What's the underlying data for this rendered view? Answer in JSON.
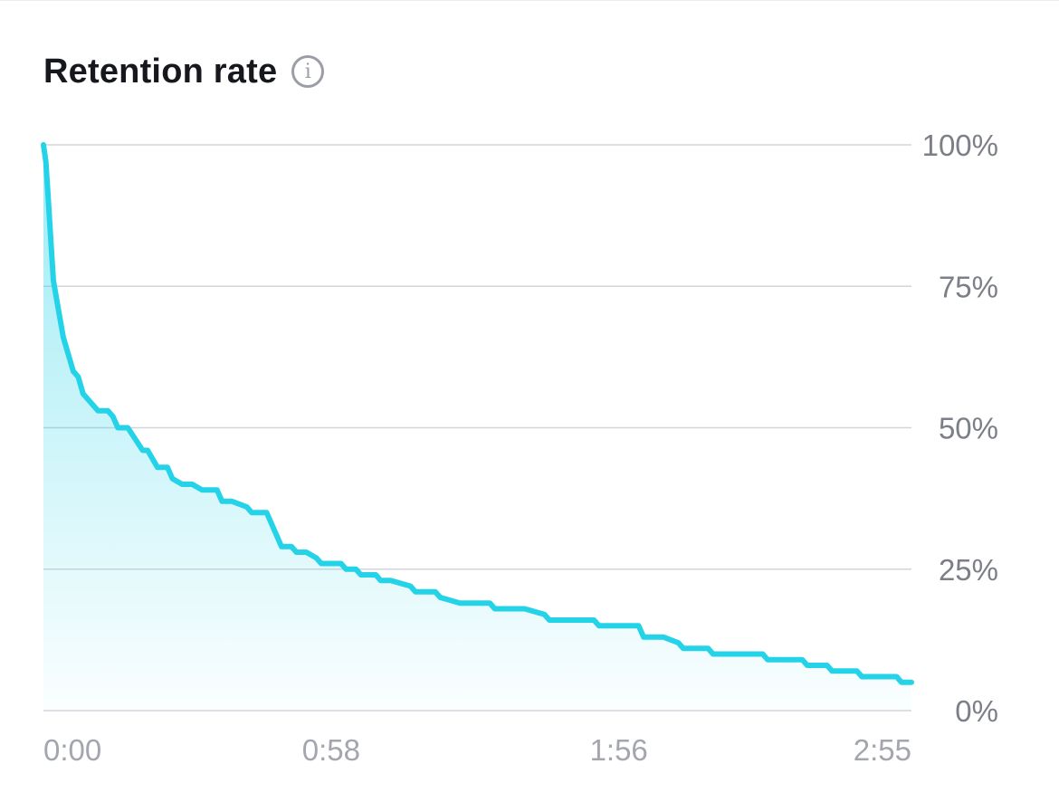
{
  "header": {
    "title": "Retention rate",
    "info_icon": "i"
  },
  "chart_data": {
    "type": "area",
    "title": "Retention rate",
    "xlabel": "",
    "ylabel": "",
    "x_tick_labels": [
      "0:00",
      "0:58",
      "1:56",
      "2:55"
    ],
    "x_tick_seconds": [
      0,
      58,
      116,
      175
    ],
    "xlim_seconds": [
      0,
      175
    ],
    "y_tick_labels": [
      "0%",
      "25%",
      "50%",
      "75%",
      "100%"
    ],
    "y_ticks": [
      0,
      25,
      50,
      75,
      100
    ],
    "ylim": [
      0,
      100
    ],
    "grid": true,
    "y_axis_position": "right",
    "line_color": "#25d3e8",
    "fill_color": "#25d3e8",
    "series": [
      {
        "x_seconds": [
          0,
          0.5,
          1,
          1.5,
          2,
          3,
          4,
          5,
          6,
          7,
          8,
          9,
          10,
          11,
          12,
          13,
          14,
          15,
          17,
          20,
          21,
          23,
          25,
          26,
          28,
          30,
          32,
          35,
          36,
          38,
          41,
          42,
          45,
          46,
          48,
          50,
          51,
          53,
          55,
          56,
          60,
          61,
          63,
          64,
          67,
          68,
          70,
          74,
          75,
          79,
          80,
          84,
          90,
          91,
          97,
          101,
          102,
          111,
          112,
          120,
          121,
          125,
          128,
          129,
          134,
          135,
          145,
          146,
          153,
          154,
          158,
          159,
          164,
          165,
          172,
          173,
          175
        ],
        "y_percent": [
          100,
          97,
          90,
          83,
          76,
          71,
          66,
          63,
          60,
          59,
          56,
          55,
          54,
          53,
          53,
          53,
          52,
          50,
          50,
          46,
          46,
          43,
          43,
          41,
          40,
          40,
          39,
          39,
          37,
          37,
          36,
          35,
          35,
          33,
          29,
          29,
          28,
          28,
          27,
          26,
          26,
          25,
          25,
          24,
          24,
          23,
          23,
          22,
          21,
          21,
          20,
          19,
          19,
          18,
          18,
          17,
          16,
          16,
          15,
          15,
          13,
          13,
          12,
          11,
          11,
          10,
          10,
          9,
          9,
          8,
          8,
          7,
          7,
          6,
          6,
          5,
          5
        ]
      }
    ]
  }
}
